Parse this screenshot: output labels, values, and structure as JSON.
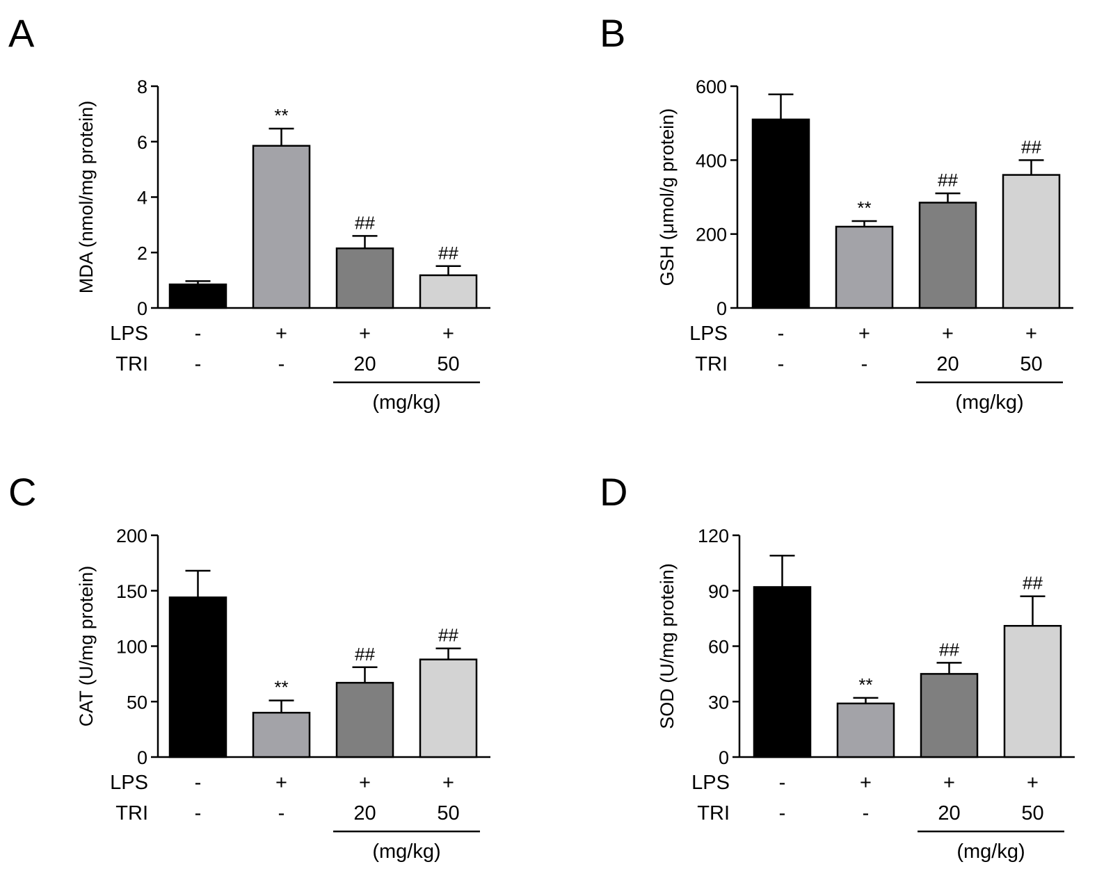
{
  "row_labels": [
    "LPS",
    "TRI"
  ],
  "treatment_unit": "(mg/kg)",
  "conditions": {
    "LPS": [
      "-",
      "+",
      "+",
      "+"
    ],
    "TRI": [
      "-",
      "-",
      "20",
      "50"
    ]
  },
  "bar_colors": [
    "#000000",
    "#a3a3a8",
    "#7f7f7f",
    "#d3d3d3"
  ],
  "chart_data": [
    {
      "panel": "A",
      "type": "bar",
      "ylabel": "MDA (nmol/mg protein)",
      "ylim": [
        0,
        8
      ],
      "yticks": [
        "0",
        "2",
        "4",
        "6",
        "8"
      ],
      "series": [
        {
          "values": [
            0.85,
            5.85,
            2.15,
            1.18
          ],
          "errors": [
            0.12,
            0.62,
            0.45,
            0.33
          ],
          "significance": [
            "",
            "**",
            "##",
            "##"
          ]
        }
      ]
    },
    {
      "panel": "B",
      "type": "bar",
      "ylabel": "GSH (μmol/g protein)",
      "ylim": [
        0,
        600
      ],
      "yticks": [
        "0",
        "200",
        "400",
        "600"
      ],
      "series": [
        {
          "values": [
            510,
            220,
            285,
            360
          ],
          "errors": [
            68,
            15,
            25,
            40
          ],
          "significance": [
            "",
            "**",
            "##",
            "##"
          ]
        }
      ]
    },
    {
      "panel": "C",
      "type": "bar",
      "ylabel": "CAT (U/mg protein)",
      "ylim": [
        0,
        200
      ],
      "yticks": [
        "0",
        "50",
        "100",
        "150",
        "200"
      ],
      "series": [
        {
          "values": [
            144,
            40,
            67,
            88
          ],
          "errors": [
            24,
            11,
            14,
            10
          ],
          "significance": [
            "",
            "**",
            "##",
            "##"
          ]
        }
      ]
    },
    {
      "panel": "D",
      "type": "bar",
      "ylabel": "SOD (U/mg protein)",
      "ylim": [
        0,
        120
      ],
      "yticks": [
        "0",
        "30",
        "60",
        "90",
        "120"
      ],
      "series": [
        {
          "values": [
            92,
            29,
            45,
            71
          ],
          "errors": [
            17,
            3,
            6,
            16
          ],
          "significance": [
            "",
            "**",
            "##",
            "##"
          ]
        }
      ]
    }
  ]
}
